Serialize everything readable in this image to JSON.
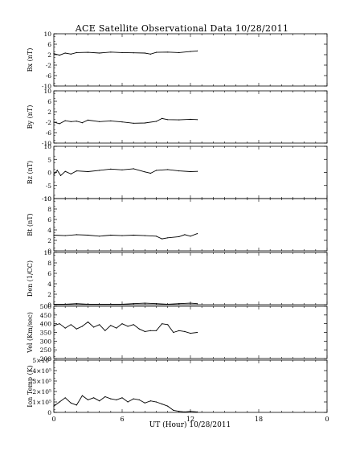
{
  "chart_data": [
    {
      "type": "line",
      "title": "ACE Satellite Observational Data   10/28/2011",
      "xlabel": "UT (Hour)   10/28/2011",
      "x_ticks": [
        "0",
        "6",
        "12",
        "18",
        "0"
      ],
      "xlim": [
        0,
        24
      ],
      "data_until_hour": 12.6,
      "panels": [
        {
          "ylabel": "Bx (nT)",
          "ylim": [
            -10,
            10
          ],
          "yticks": [
            "10",
            "6",
            "2",
            "-2",
            "-6",
            "-10"
          ],
          "x": [
            0,
            0.5,
            1,
            1.5,
            2,
            3,
            4,
            5,
            6,
            7,
            8,
            8.5,
            9,
            10,
            11,
            12,
            12.6
          ],
          "values": [
            2.4,
            1.8,
            2.6,
            2.2,
            2.8,
            2.9,
            2.6,
            3.0,
            2.8,
            2.7,
            2.6,
            2.2,
            2.9,
            3.0,
            2.8,
            3.2,
            3.4
          ]
        },
        {
          "ylabel": "By (nT)",
          "ylim": [
            -10,
            10
          ],
          "yticks": [
            "10",
            "6",
            "2",
            "-2",
            "-6",
            "-10"
          ],
          "x": [
            0,
            0.5,
            1,
            1.5,
            2,
            2.5,
            3,
            4,
            5,
            6,
            7,
            8,
            9,
            9.5,
            10,
            11,
            12,
            12.6
          ],
          "values": [
            -2.0,
            -2.6,
            -1.4,
            -1.8,
            -1.6,
            -2.2,
            -1.2,
            -1.8,
            -1.5,
            -1.9,
            -2.4,
            -2.3,
            -1.7,
            -0.6,
            -1.0,
            -1.1,
            -0.9,
            -1.0
          ]
        },
        {
          "ylabel": "Bz (nT)",
          "ylim": [
            -10,
            10
          ],
          "yticks": [
            "10",
            "5",
            "0",
            "-5",
            "-10"
          ],
          "x": [
            0,
            0.3,
            0.6,
            1,
            1.5,
            2,
            3,
            4,
            5,
            6,
            7,
            8,
            8.5,
            9,
            10,
            11,
            12,
            12.6
          ],
          "values": [
            -0.8,
            0.8,
            -1.2,
            0.4,
            -0.6,
            0.6,
            0.3,
            0.8,
            1.3,
            1.0,
            1.4,
            0.2,
            -0.3,
            0.8,
            1.1,
            0.6,
            0.3,
            0.4
          ]
        },
        {
          "ylabel": "Bt (nT)",
          "ylim": [
            0,
            10
          ],
          "yticks": [
            "10",
            "8",
            "6",
            "4",
            "2",
            "0"
          ],
          "x": [
            0,
            1,
            2,
            3,
            4,
            5,
            6,
            7,
            8,
            9,
            9.5,
            10,
            11,
            11.5,
            12,
            12.6
          ],
          "values": [
            3.0,
            2.9,
            3.1,
            3.0,
            2.8,
            3.0,
            2.9,
            3.0,
            2.9,
            2.8,
            2.3,
            2.5,
            2.7,
            3.1,
            2.8,
            3.3
          ]
        },
        {
          "ylabel": "Den (1/CC)",
          "ylim": [
            0,
            10
          ],
          "yticks": [
            "10",
            "8",
            "6",
            "4",
            "2",
            "0"
          ],
          "x": [
            0,
            1,
            2,
            3,
            4,
            5,
            6,
            7,
            8,
            9,
            10,
            11,
            12,
            12.6
          ],
          "values": [
            0.1,
            0.1,
            0.2,
            0.1,
            0.1,
            0.1,
            0.1,
            0.2,
            0.3,
            0.2,
            0.1,
            0.2,
            0.3,
            0.2
          ]
        },
        {
          "ylabel": "Vel (Km/sec)",
          "ylim": [
            200,
            500
          ],
          "yticks": [
            "500",
            "450",
            "400",
            "350",
            "300",
            "250",
            "200"
          ],
          "x": [
            0,
            0.5,
            1,
            1.5,
            2,
            2.5,
            3,
            3.5,
            4,
            4.5,
            5,
            5.5,
            6,
            6.5,
            7,
            7.5,
            8,
            8.5,
            9,
            9.5,
            10,
            10.5,
            11,
            11.5,
            12,
            12.6
          ],
          "values": [
            390,
            400,
            375,
            395,
            370,
            385,
            410,
            380,
            395,
            360,
            390,
            375,
            400,
            385,
            395,
            370,
            355,
            360,
            360,
            400,
            395,
            350,
            360,
            355,
            345,
            350
          ]
        },
        {
          "ylabel": "Ion Temp (K)",
          "ylim": [
            0,
            500000
          ],
          "yticks": [
            "5×10⁵",
            "4×10⁵",
            "3×10⁵",
            "2×10⁵",
            "1×10⁵",
            "0"
          ],
          "x": [
            0,
            0.5,
            1,
            1.5,
            2,
            2.5,
            3,
            3.5,
            4,
            4.5,
            5,
            5.5,
            6,
            6.5,
            7,
            7.5,
            8,
            8.5,
            9,
            9.5,
            10,
            10.5,
            11,
            11.5,
            12,
            12.6
          ],
          "values": [
            60000,
            100000,
            140000,
            90000,
            70000,
            160000,
            120000,
            140000,
            110000,
            150000,
            130000,
            120000,
            140000,
            100000,
            130000,
            120000,
            90000,
            110000,
            100000,
            80000,
            60000,
            20000,
            10000,
            5000,
            10000,
            5000
          ]
        }
      ]
    }
  ]
}
